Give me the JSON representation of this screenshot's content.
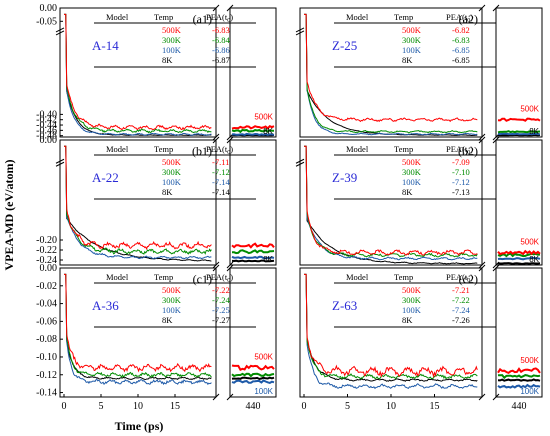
{
  "figure": {
    "ylabel": "VPEA-MD (eV/atom)",
    "xlabel": "Time (ps)",
    "x_ticks_main": [
      "0",
      "5",
      "10",
      "15"
    ],
    "x_tick_break": "440",
    "table_headers": [
      "Model",
      "Temp",
      "PEA(t",
      "0",
      ")"
    ],
    "temps": [
      "500K",
      "300K",
      "100K",
      "8K"
    ]
  },
  "colors": {
    "500K": "#ff0000",
    "300K": "#008c00",
    "100K": "#1e5aa8",
    "8K": "#000000",
    "model_label": "#2a2ad6"
  },
  "chart_data": [
    {
      "type": "line",
      "panel": "(a1)",
      "model": "A-14",
      "column": "left",
      "row": 0,
      "ylim": [
        -0.485,
        0.0
      ],
      "yticks": [
        "0.00",
        "-0.05",
        "-0.40",
        "-0.42",
        "-0.44",
        "-0.46",
        "-0.48"
      ],
      "ytick_values": [
        0.0,
        -0.05,
        -0.4,
        -0.42,
        -0.44,
        -0.46,
        -0.48
      ],
      "ybreak": true,
      "table": [
        [
          "500K",
          "-6.83"
        ],
        [
          "300K",
          "-6.84"
        ],
        [
          "100K",
          "-6.86"
        ],
        [
          "8K",
          "-6.87"
        ]
      ],
      "side_labels": [
        {
          "text": "500K",
          "color": "500K",
          "pos": "upper"
        },
        {
          "text": "8K",
          "color": "8K",
          "pos": "lower"
        }
      ],
      "plateau": {
        "500K": -0.449,
        "300K": -0.462,
        "100K": -0.475,
        "8K": -0.478
      },
      "drop_time": {
        "500K": 3.5,
        "300K": 3.5,
        "100K": 3.0,
        "8K": 3.8
      },
      "noise": {
        "500K": 0.006,
        "300K": 0.005,
        "100K": 0.003,
        "8K": 0.001
      },
      "x": [
        0,
        0.5,
        1,
        1.5,
        2,
        2.5,
        3,
        3.5,
        4,
        5,
        6,
        8,
        10,
        12,
        15,
        18,
        20
      ]
    },
    {
      "type": "line",
      "panel": "(a2)",
      "model": "Z-25",
      "column": "right",
      "row": 0,
      "ylim": [
        -0.485,
        0.0
      ],
      "yticks": [],
      "ytick_values": [],
      "ybreak": true,
      "table": [
        [
          "500K",
          "-6.82"
        ],
        [
          "300K",
          "-6.83"
        ],
        [
          "100K",
          "-6.85"
        ],
        [
          "8K",
          "-6.85"
        ]
      ],
      "side_labels": [
        {
          "text": "500K",
          "color": "500K",
          "pos": "upper"
        },
        {
          "text": "8K",
          "color": "8K",
          "pos": "lower"
        }
      ],
      "plateau": {
        "500K": -0.42,
        "300K": -0.465,
        "100K": -0.474,
        "8K": -0.478
      },
      "drop_time": {
        "500K": 3.0,
        "300K": 2.5,
        "100K": 2.5,
        "8K": 7.0
      },
      "noise": {
        "500K": 0.005,
        "300K": 0.003,
        "100K": 0.002,
        "8K": 0.001
      },
      "x": [
        0,
        0.5,
        1,
        1.5,
        2,
        2.5,
        3,
        3.5,
        4,
        5,
        6,
        8,
        10,
        12,
        15,
        18,
        20
      ]
    },
    {
      "type": "line",
      "panel": "(b1)",
      "model": "A-22",
      "column": "left",
      "row": 1,
      "ylim": [
        -0.25,
        0.0
      ],
      "yticks": [
        "0.00",
        "-0.20",
        "-0.22",
        "-0.24"
      ],
      "ytick_values": [
        0.0,
        -0.2,
        -0.22,
        -0.24
      ],
      "ybreak": true,
      "table": [
        [
          "500K",
          "-7.11"
        ],
        [
          "300K",
          "-7.12"
        ],
        [
          "100K",
          "-7.14"
        ],
        [
          "8K",
          "-7.14"
        ]
      ],
      "side_labels": [
        {
          "text": "8K",
          "color": "8K",
          "pos": "lower"
        }
      ],
      "plateau": {
        "500K": -0.211,
        "300K": -0.223,
        "100K": -0.235,
        "8K": -0.242
      },
      "drop_time": {
        "500K": 3.0,
        "300K": 4.0,
        "100K": 5.0,
        "8K": 12.0
      },
      "noise": {
        "500K": 0.005,
        "300K": 0.004,
        "100K": 0.002,
        "8K": 0.001
      },
      "x": [
        0,
        0.5,
        1,
        1.5,
        2,
        2.5,
        3,
        3.5,
        4,
        5,
        6,
        8,
        10,
        12,
        15,
        18,
        20
      ]
    },
    {
      "type": "line",
      "panel": "(b2)",
      "model": "Z-39",
      "column": "right",
      "row": 1,
      "ylim": [
        -0.25,
        0.0
      ],
      "yticks": [],
      "ytick_values": [],
      "ybreak": true,
      "table": [
        [
          "500K",
          "-7.09"
        ],
        [
          "300K",
          "-7.10"
        ],
        [
          "100K",
          "-7.12"
        ],
        [
          "8K",
          "-7.13"
        ]
      ],
      "side_labels": [
        {
          "text": "500K",
          "color": "500K",
          "pos": "upper"
        },
        {
          "text": "8K",
          "color": "8K",
          "pos": "lower"
        }
      ],
      "plateau": {
        "500K": -0.225,
        "300K": -0.23,
        "100K": -0.237,
        "8K": -0.247
      },
      "drop_time": {
        "500K": 2.5,
        "300K": 3.0,
        "100K": 4.0,
        "8K": 8.0
      },
      "noise": {
        "500K": 0.004,
        "300K": 0.003,
        "100K": 0.002,
        "8K": 0.001
      },
      "x": [
        0,
        0.5,
        1,
        1.5,
        2,
        2.5,
        3,
        3.5,
        4,
        5,
        6,
        8,
        10,
        12,
        15,
        18,
        20
      ]
    },
    {
      "type": "line",
      "panel": "(c1)",
      "model": "A-36",
      "column": "left",
      "row": 2,
      "ylim": [
        -0.145,
        0.0
      ],
      "yticks": [
        "0.00",
        "-0.02",
        "-0.04",
        "-0.06",
        "-0.08",
        "-0.10",
        "-0.12",
        "-0.14"
      ],
      "ytick_values": [
        0.0,
        -0.02,
        -0.04,
        -0.06,
        -0.08,
        -0.1,
        -0.12,
        -0.14
      ],
      "ybreak": false,
      "table": [
        [
          "500K",
          "-7.22"
        ],
        [
          "300K",
          "-7.24"
        ],
        [
          "100K",
          "-7.25"
        ],
        [
          "8K",
          "-7.27"
        ]
      ],
      "side_labels": [
        {
          "text": "500K",
          "color": "500K",
          "pos": "upper"
        },
        {
          "text": "100K",
          "color": "100K",
          "pos": "lower"
        }
      ],
      "plateau": {
        "500K": -0.112,
        "300K": -0.12,
        "100K": -0.128,
        "8K": -0.124
      },
      "drop_time": {
        "500K": 2.0,
        "300K": 2.0,
        "100K": 2.0,
        "8K": 2.5
      },
      "noise": {
        "500K": 0.003,
        "300K": 0.002,
        "100K": 0.002,
        "8K": 0.001
      },
      "x": [
        0,
        0.5,
        1,
        1.5,
        2,
        2.5,
        3,
        3.5,
        4,
        5,
        6,
        8,
        10,
        12,
        15,
        18,
        20
      ]
    },
    {
      "type": "line",
      "panel": "(c2)",
      "model": "Z-63",
      "column": "right",
      "row": 2,
      "ylim": [
        -0.145,
        0.0
      ],
      "yticks": [],
      "ytick_values": [],
      "ybreak": false,
      "table": [
        [
          "500K",
          "-7.21"
        ],
        [
          "300K",
          "-7.22"
        ],
        [
          "100K",
          "-7.24"
        ],
        [
          "8K",
          "-7.26"
        ]
      ],
      "side_labels": [
        {
          "text": "500K",
          "color": "500K",
          "pos": "upper"
        },
        {
          "text": "100K",
          "color": "100K",
          "pos": "lower"
        }
      ],
      "plateau": {
        "500K": -0.116,
        "300K": -0.122,
        "100K": -0.133,
        "8K": -0.126
      },
      "drop_time": {
        "500K": 2.0,
        "300K": 2.0,
        "100K": 2.0,
        "8K": 3.0
      },
      "noise": {
        "500K": 0.004,
        "300K": 0.002,
        "100K": 0.002,
        "8K": 0.001
      },
      "x": [
        0,
        0.5,
        1,
        1.5,
        2,
        2.5,
        3,
        3.5,
        4,
        5,
        6,
        8,
        10,
        12,
        15,
        18,
        20
      ]
    }
  ]
}
